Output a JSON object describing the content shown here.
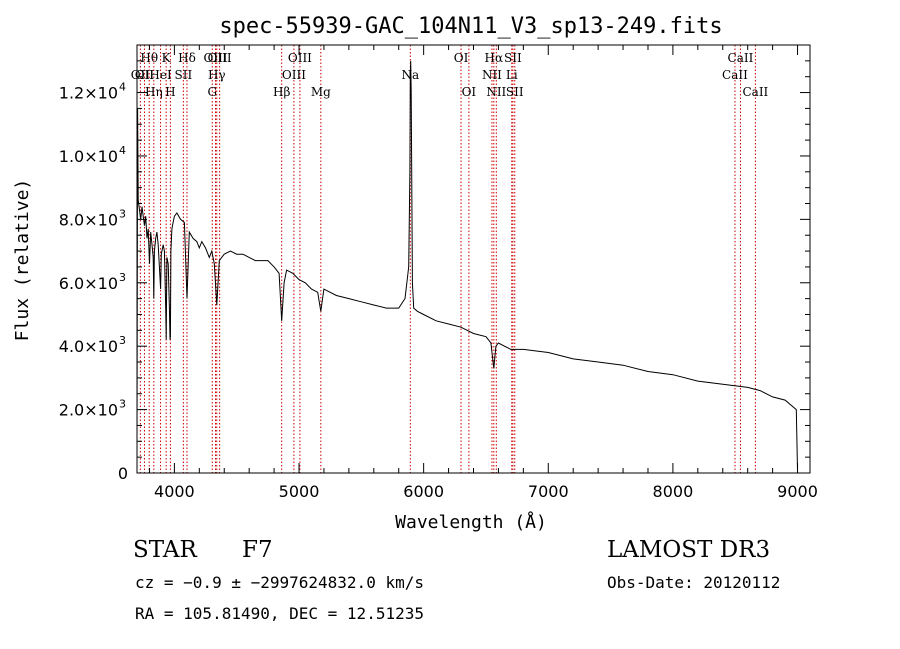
{
  "chart_data": {
    "type": "line",
    "title": "spec-55939-GAC_104N11_V3_sp13-249.fits",
    "xlabel": "Wavelength (Å)",
    "ylabel": "Flux (relative)",
    "xlim": [
      3700,
      9100
    ],
    "ylim": [
      0,
      13500
    ],
    "xticks": [
      4000,
      5000,
      6000,
      7000,
      8000,
      9000
    ],
    "xtick_labels": [
      "4000",
      "5000",
      "6000",
      "7000",
      "8000",
      "9000"
    ],
    "yticks": [
      {
        "value": 0,
        "mantissa": "0",
        "exp": ""
      },
      {
        "value": 2000,
        "mantissa": "2.0×10",
        "exp": "3"
      },
      {
        "value": 4000,
        "mantissa": "4.0×10",
        "exp": "3"
      },
      {
        "value": 6000,
        "mantissa": "6.0×10",
        "exp": "3"
      },
      {
        "value": 8000,
        "mantissa": "8.0×10",
        "exp": "3"
      },
      {
        "value": 10000,
        "mantissa": "1.0×10",
        "exp": "4"
      },
      {
        "value": 12000,
        "mantissa": "1.2×10",
        "exp": "4"
      }
    ],
    "line_color": "#000000",
    "marker_color": "#cc0000",
    "series": [
      {
        "name": "flux",
        "x": [
          3700,
          3705,
          3710,
          3720,
          3730,
          3740,
          3750,
          3760,
          3770,
          3780,
          3790,
          3800,
          3810,
          3820,
          3830,
          3835,
          3840,
          3850,
          3860,
          3870,
          3880,
          3889,
          3895,
          3900,
          3910,
          3920,
          3930,
          3934,
          3940,
          3950,
          3960,
          3965,
          3968,
          3972,
          3980,
          3990,
          4000,
          4020,
          4050,
          4080,
          4101,
          4120,
          4150,
          4180,
          4200,
          4220,
          4250,
          4280,
          4300,
          4320,
          4340,
          4360,
          4400,
          4450,
          4500,
          4550,
          4600,
          4650,
          4700,
          4750,
          4800,
          4840,
          4861,
          4880,
          4900,
          4950,
          5000,
          5050,
          5100,
          5150,
          5175,
          5200,
          5300,
          5400,
          5500,
          5600,
          5700,
          5800,
          5850,
          5880,
          5890,
          5893,
          5896,
          5900,
          5910,
          5920,
          5950,
          6000,
          6100,
          6200,
          6300,
          6400,
          6500,
          6540,
          6563,
          6580,
          6600,
          6700,
          6800,
          7000,
          7200,
          7400,
          7600,
          7800,
          8000,
          8200,
          8400,
          8600,
          8700,
          8800,
          8900,
          8990,
          9000
        ],
        "y": [
          1000,
          11500,
          8600,
          8300,
          8000,
          8400,
          8100,
          7800,
          8100,
          7400,
          7700,
          6600,
          7600,
          7200,
          6800,
          5500,
          7000,
          7400,
          7600,
          7200,
          6500,
          5800,
          6900,
          7000,
          7200,
          7000,
          5200,
          4200,
          6800,
          6600,
          5200,
          4200,
          4300,
          7000,
          7700,
          7900,
          8100,
          8200,
          8000,
          7900,
          5500,
          7600,
          7400,
          7300,
          7100,
          7300,
          7100,
          6800,
          7000,
          6600,
          5300,
          6700,
          6900,
          7000,
          6900,
          6900,
          6800,
          6700,
          6700,
          6700,
          6500,
          6300,
          4800,
          6000,
          6400,
          6300,
          6100,
          6000,
          5800,
          5700,
          5100,
          5800,
          5600,
          5500,
          5400,
          5300,
          5200,
          5200,
          5500,
          6500,
          9500,
          12500,
          13000,
          12000,
          6000,
          5200,
          5100,
          5000,
          4800,
          4700,
          4600,
          4400,
          4300,
          4100,
          3300,
          4000,
          4100,
          3900,
          3900,
          3800,
          3600,
          3500,
          3400,
          3200,
          3100,
          2900,
          2800,
          2700,
          2600,
          2400,
          2300,
          2000,
          100
        ]
      }
    ],
    "lines": [
      {
        "name": "OII",
        "wave": 3727,
        "label_row": 2
      },
      {
        "name": "Hθ",
        "wave": 3798,
        "label_row": 1
      },
      {
        "name": "OII",
        "wave": 3760,
        "label_row": 2
      },
      {
        "name": "Hη",
        "wave": 3835,
        "label_row": 3
      },
      {
        "name": "HeI",
        "wave": 3889,
        "label_row": 2
      },
      {
        "name": "K",
        "wave": 3934,
        "label_row": 1
      },
      {
        "name": "H",
        "wave": 3968,
        "label_row": 3
      },
      {
        "name": "SII",
        "wave": 4072,
        "label_row": 2
      },
      {
        "name": "Hδ",
        "wave": 4101,
        "label_row": 1
      },
      {
        "name": "G",
        "wave": 4304,
        "label_row": 3
      },
      {
        "name": "OIII",
        "wave": 4330,
        "label_row": 1
      },
      {
        "name": "Hγ",
        "wave": 4340,
        "label_row": 2
      },
      {
        "name": "OIII",
        "wave": 4363,
        "label_row": 1
      },
      {
        "name": "Hβ",
        "wave": 4861,
        "label_row": 3
      },
      {
        "name": "OIII",
        "wave": 4959,
        "label_row": 2
      },
      {
        "name": "OIII",
        "wave": 5007,
        "label_row": 1
      },
      {
        "name": "Mg",
        "wave": 5175,
        "label_row": 3
      },
      {
        "name": "Na",
        "wave": 5893,
        "label_row": 2
      },
      {
        "name": "OI",
        "wave": 6300,
        "label_row": 1
      },
      {
        "name": "OI",
        "wave": 6363,
        "label_row": 3
      },
      {
        "name": "NII",
        "wave": 6548,
        "label_row": 2
      },
      {
        "name": "Hα",
        "wave": 6563,
        "label_row": 1
      },
      {
        "name": "NII",
        "wave": 6583,
        "label_row": 3
      },
      {
        "name": "Li",
        "wave": 6707,
        "label_row": 2
      },
      {
        "name": "SII",
        "wave": 6716,
        "label_row": 1
      },
      {
        "name": "SII",
        "wave": 6731,
        "label_row": 3
      },
      {
        "name": "CaII",
        "wave": 8498,
        "label_row": 2
      },
      {
        "name": "CaII",
        "wave": 8542,
        "label_row": 1
      },
      {
        "name": "CaII",
        "wave": 8662,
        "label_row": 3
      }
    ]
  },
  "info": {
    "class_label": "STAR",
    "subclass": "F7",
    "survey": "LAMOST DR3",
    "cz_line": "cz = −0.9 ± −2997624832.0 km/s",
    "obs_date": "Obs-Date: 20120112",
    "coords": "RA = 105.81490, DEC =  12.51235"
  }
}
